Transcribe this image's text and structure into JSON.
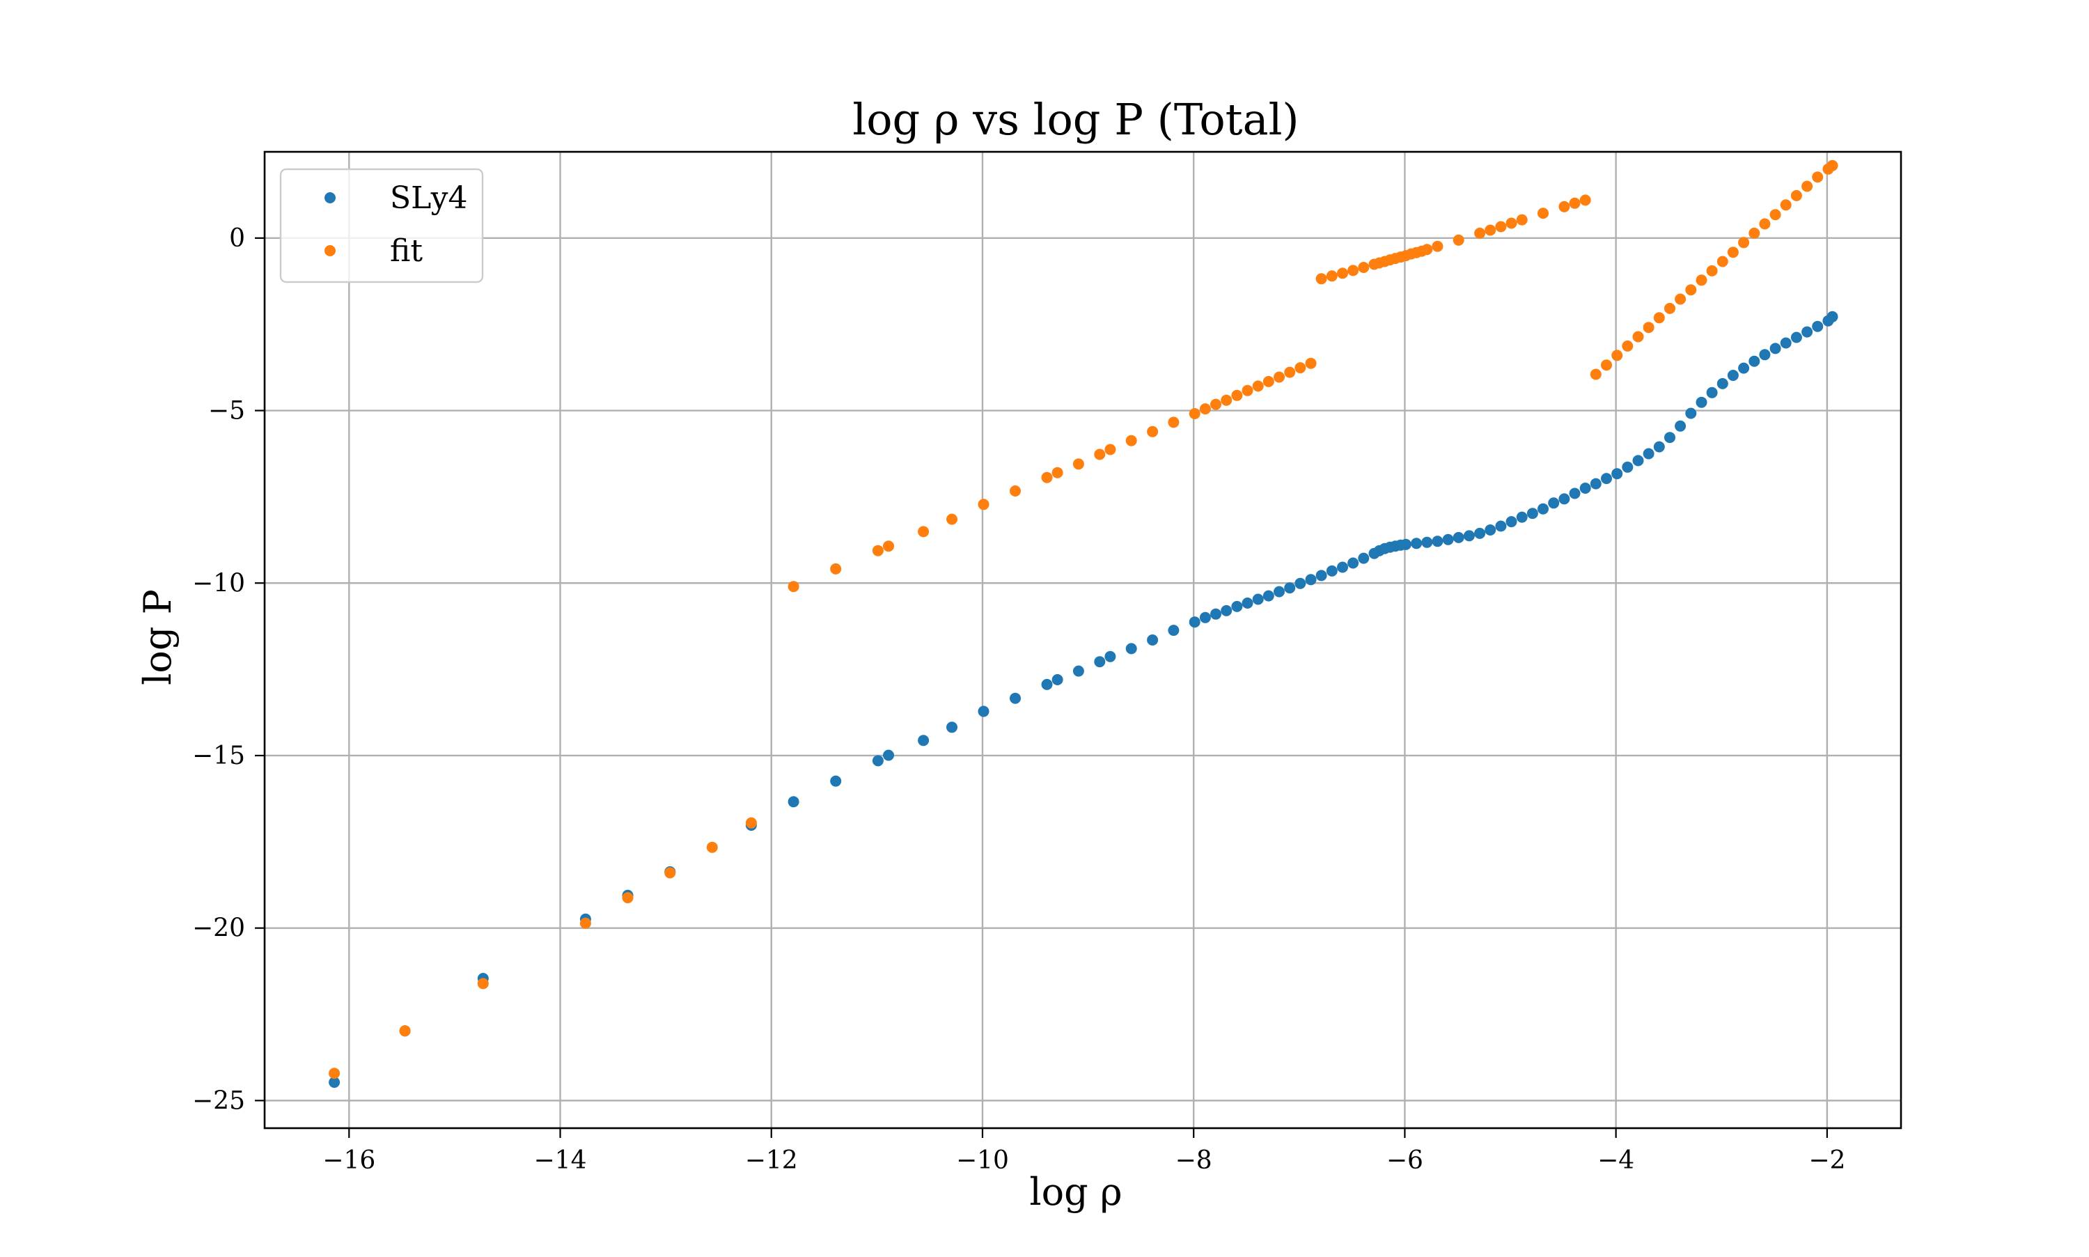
{
  "chart_data": {
    "type": "scatter",
    "title": "log ρ vs log P (Total)",
    "xlabel": "log ρ",
    "ylabel": "log P",
    "xlim": [
      -16.8,
      -1.3
    ],
    "ylim": [
      -25.8,
      2.5
    ],
    "grid": true,
    "legend_position": "top-left",
    "x_ticks": [
      -16,
      -14,
      -12,
      -10,
      -8,
      -6,
      -4,
      -2
    ],
    "x_tick_labels": [
      "−16",
      "−14",
      "−12",
      "−10",
      "−8",
      "−6",
      "−4",
      "−2"
    ],
    "y_ticks": [
      0,
      -5,
      -10,
      -15,
      -20,
      -25
    ],
    "y_tick_labels": [
      "0",
      "−5",
      "−10",
      "−15",
      "−20",
      "−25"
    ],
    "series": [
      {
        "name": "SLy4",
        "color": "#1f77b4",
        "points": [
          [
            -16.14,
            -24.47
          ],
          [
            -15.47,
            -22.98
          ],
          [
            -14.73,
            -21.46
          ],
          [
            -13.76,
            -19.74
          ],
          [
            -13.36,
            -19.05
          ],
          [
            -12.96,
            -18.37
          ],
          [
            -12.19,
            -17.02
          ],
          [
            -11.79,
            -16.34
          ],
          [
            -11.39,
            -15.74
          ],
          [
            -10.99,
            -15.15
          ],
          [
            -10.89,
            -14.99
          ],
          [
            -10.56,
            -14.56
          ],
          [
            -10.29,
            -14.18
          ],
          [
            -9.99,
            -13.72
          ],
          [
            -9.69,
            -13.34
          ],
          [
            -9.39,
            -12.94
          ],
          [
            -9.29,
            -12.8
          ],
          [
            -9.09,
            -12.55
          ],
          [
            -8.89,
            -12.28
          ],
          [
            -8.79,
            -12.13
          ],
          [
            -8.59,
            -11.9
          ],
          [
            -8.39,
            -11.65
          ],
          [
            -8.19,
            -11.37
          ],
          [
            -7.99,
            -11.13
          ],
          [
            -7.89,
            -11.0
          ],
          [
            -7.79,
            -10.9
          ],
          [
            -7.69,
            -10.8
          ],
          [
            -7.59,
            -10.68
          ],
          [
            -7.49,
            -10.58
          ],
          [
            -7.39,
            -10.47
          ],
          [
            -7.29,
            -10.37
          ],
          [
            -7.19,
            -10.25
          ],
          [
            -7.09,
            -10.14
          ],
          [
            -6.99,
            -10.01
          ],
          [
            -6.89,
            -9.9
          ],
          [
            -6.79,
            -9.78
          ],
          [
            -6.69,
            -9.65
          ],
          [
            -6.59,
            -9.54
          ],
          [
            -6.49,
            -9.42
          ],
          [
            -6.39,
            -9.28
          ],
          [
            -6.29,
            -9.14
          ],
          [
            -6.24,
            -9.06
          ],
          [
            -6.19,
            -9.0
          ],
          [
            -6.14,
            -8.96
          ],
          [
            -6.09,
            -8.93
          ],
          [
            -6.04,
            -8.9
          ],
          [
            -5.99,
            -8.88
          ],
          [
            -5.89,
            -8.85
          ],
          [
            -5.79,
            -8.82
          ],
          [
            -5.69,
            -8.79
          ],
          [
            -5.59,
            -8.74
          ],
          [
            -5.49,
            -8.68
          ],
          [
            -5.39,
            -8.63
          ],
          [
            -5.29,
            -8.56
          ],
          [
            -5.19,
            -8.46
          ],
          [
            -5.09,
            -8.35
          ],
          [
            -4.99,
            -8.22
          ],
          [
            -4.89,
            -8.09
          ],
          [
            -4.79,
            -7.98
          ],
          [
            -4.69,
            -7.85
          ],
          [
            -4.59,
            -7.68
          ],
          [
            -4.49,
            -7.56
          ],
          [
            -4.39,
            -7.4
          ],
          [
            -4.29,
            -7.25
          ],
          [
            -4.19,
            -7.12
          ],
          [
            -4.09,
            -6.97
          ],
          [
            -3.99,
            -6.83
          ],
          [
            -3.89,
            -6.64
          ],
          [
            -3.79,
            -6.45
          ],
          [
            -3.69,
            -6.25
          ],
          [
            -3.59,
            -6.05
          ],
          [
            -3.49,
            -5.78
          ],
          [
            -3.39,
            -5.45
          ],
          [
            -3.29,
            -5.08
          ],
          [
            -3.19,
            -4.76
          ],
          [
            -3.09,
            -4.48
          ],
          [
            -2.99,
            -4.22
          ],
          [
            -2.89,
            -3.98
          ],
          [
            -2.79,
            -3.77
          ],
          [
            -2.69,
            -3.57
          ],
          [
            -2.59,
            -3.38
          ],
          [
            -2.49,
            -3.2
          ],
          [
            -2.39,
            -3.04
          ],
          [
            -2.29,
            -2.88
          ],
          [
            -2.19,
            -2.72
          ],
          [
            -2.09,
            -2.56
          ],
          [
            -1.99,
            -2.4
          ],
          [
            -1.95,
            -2.28
          ]
        ]
      },
      {
        "name": "fit",
        "color": "#ff7f0e",
        "points": [
          [
            -16.14,
            -24.21
          ],
          [
            -15.47,
            -22.98
          ],
          [
            -14.73,
            -21.61
          ],
          [
            -13.76,
            -19.86
          ],
          [
            -13.36,
            -19.12
          ],
          [
            -12.96,
            -18.4
          ],
          [
            -12.56,
            -17.66
          ],
          [
            -12.19,
            -16.95
          ],
          [
            -11.79,
            -10.1
          ],
          [
            -11.39,
            -9.59
          ],
          [
            -10.99,
            -9.06
          ],
          [
            -10.89,
            -8.93
          ],
          [
            -10.56,
            -8.51
          ],
          [
            -10.29,
            -8.15
          ],
          [
            -9.99,
            -7.72
          ],
          [
            -9.69,
            -7.33
          ],
          [
            -9.39,
            -6.94
          ],
          [
            -9.29,
            -6.8
          ],
          [
            -9.09,
            -6.55
          ],
          [
            -8.89,
            -6.27
          ],
          [
            -8.79,
            -6.13
          ],
          [
            -8.59,
            -5.87
          ],
          [
            -8.39,
            -5.61
          ],
          [
            -8.19,
            -5.34
          ],
          [
            -7.99,
            -5.09
          ],
          [
            -7.89,
            -4.95
          ],
          [
            -7.79,
            -4.82
          ],
          [
            -7.69,
            -4.7
          ],
          [
            -7.59,
            -4.56
          ],
          [
            -7.49,
            -4.42
          ],
          [
            -7.39,
            -4.29
          ],
          [
            -7.29,
            -4.16
          ],
          [
            -7.19,
            -4.03
          ],
          [
            -7.09,
            -3.89
          ],
          [
            -6.99,
            -3.76
          ],
          [
            -6.89,
            -3.63
          ],
          [
            -6.79,
            -1.18
          ],
          [
            -6.69,
            -1.1
          ],
          [
            -6.59,
            -1.02
          ],
          [
            -6.49,
            -0.94
          ],
          [
            -6.39,
            -0.85
          ],
          [
            -6.29,
            -0.76
          ],
          [
            -6.24,
            -0.72
          ],
          [
            -6.19,
            -0.68
          ],
          [
            -6.14,
            -0.63
          ],
          [
            -6.09,
            -0.59
          ],
          [
            -6.04,
            -0.55
          ],
          [
            -5.99,
            -0.51
          ],
          [
            -5.94,
            -0.46
          ],
          [
            -5.89,
            -0.42
          ],
          [
            -5.84,
            -0.38
          ],
          [
            -5.79,
            -0.33
          ],
          [
            -5.69,
            -0.24
          ],
          [
            -5.49,
            -0.06
          ],
          [
            -5.29,
            0.14
          ],
          [
            -5.19,
            0.23
          ],
          [
            -5.09,
            0.33
          ],
          [
            -4.99,
            0.43
          ],
          [
            -4.89,
            0.53
          ],
          [
            -4.69,
            0.72
          ],
          [
            -4.49,
            0.91
          ],
          [
            -4.39,
            1.01
          ],
          [
            -4.29,
            1.1
          ],
          [
            -4.19,
            -3.95
          ],
          [
            -4.09,
            -3.68
          ],
          [
            -3.99,
            -3.4
          ],
          [
            -3.89,
            -3.13
          ],
          [
            -3.79,
            -2.86
          ],
          [
            -3.69,
            -2.59
          ],
          [
            -3.59,
            -2.31
          ],
          [
            -3.49,
            -2.04
          ],
          [
            -3.39,
            -1.77
          ],
          [
            -3.29,
            -1.5
          ],
          [
            -3.19,
            -1.22
          ],
          [
            -3.09,
            -0.95
          ],
          [
            -2.99,
            -0.68
          ],
          [
            -2.89,
            -0.41
          ],
          [
            -2.79,
            -0.13
          ],
          [
            -2.69,
            0.14
          ],
          [
            -2.59,
            0.41
          ],
          [
            -2.49,
            0.68
          ],
          [
            -2.39,
            0.96
          ],
          [
            -2.29,
            1.23
          ],
          [
            -2.19,
            1.5
          ],
          [
            -2.09,
            1.77
          ],
          [
            -1.99,
            2.0
          ],
          [
            -1.95,
            2.1
          ]
        ]
      }
    ]
  }
}
